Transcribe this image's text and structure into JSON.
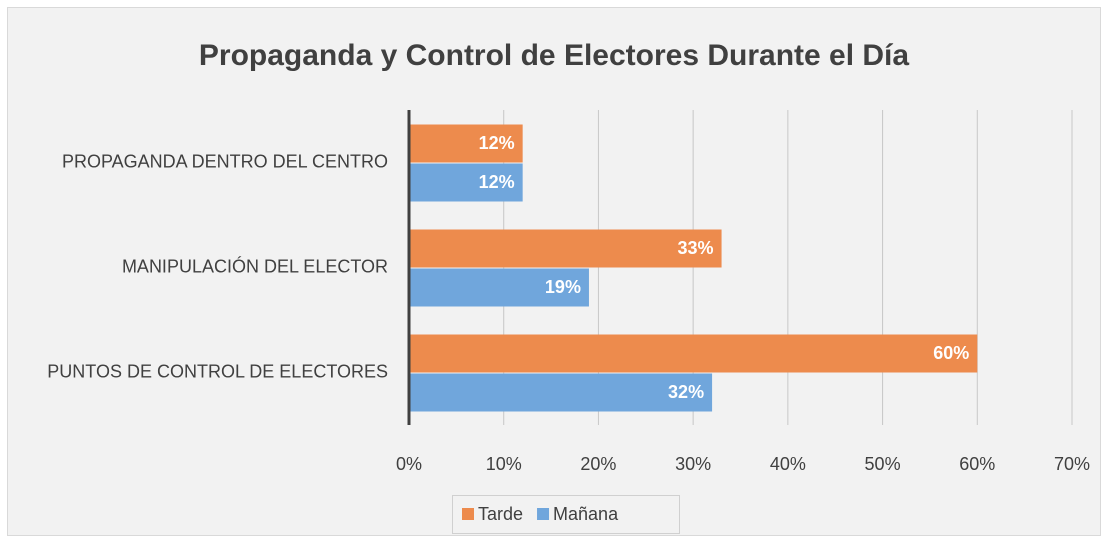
{
  "chart_data": {
    "type": "bar",
    "orientation": "horizontal",
    "title": "Propaganda y Control de Electores Durante el Día",
    "categories": [
      "PROPAGANDA DENTRO DEL CENTRO",
      "MANIPULACIÓN DEL ELECTOR",
      "PUNTOS DE CONTROL DE ELECTORES"
    ],
    "series": [
      {
        "name": "Tarde",
        "color": "#ed8b4d",
        "values": [
          12,
          33,
          60
        ],
        "value_labels": [
          "12%",
          "33%",
          "60%"
        ]
      },
      {
        "name": "Mañana",
        "color": "#70a6dc",
        "values": [
          12,
          19,
          32
        ],
        "value_labels": [
          "12%",
          "19%",
          "32%"
        ]
      }
    ],
    "xlim": [
      0,
      70
    ],
    "xticks": [
      {
        "value": 0,
        "label": "0%"
      },
      {
        "value": 10,
        "label": "10%"
      },
      {
        "value": 20,
        "label": "20%"
      },
      {
        "value": 30,
        "label": "30%"
      },
      {
        "value": 40,
        "label": "40%"
      },
      {
        "value": 50,
        "label": "50%"
      },
      {
        "value": 60,
        "label": "60%"
      },
      {
        "value": 70,
        "label": "70%"
      }
    ],
    "grid": true,
    "legend": "bottom"
  }
}
